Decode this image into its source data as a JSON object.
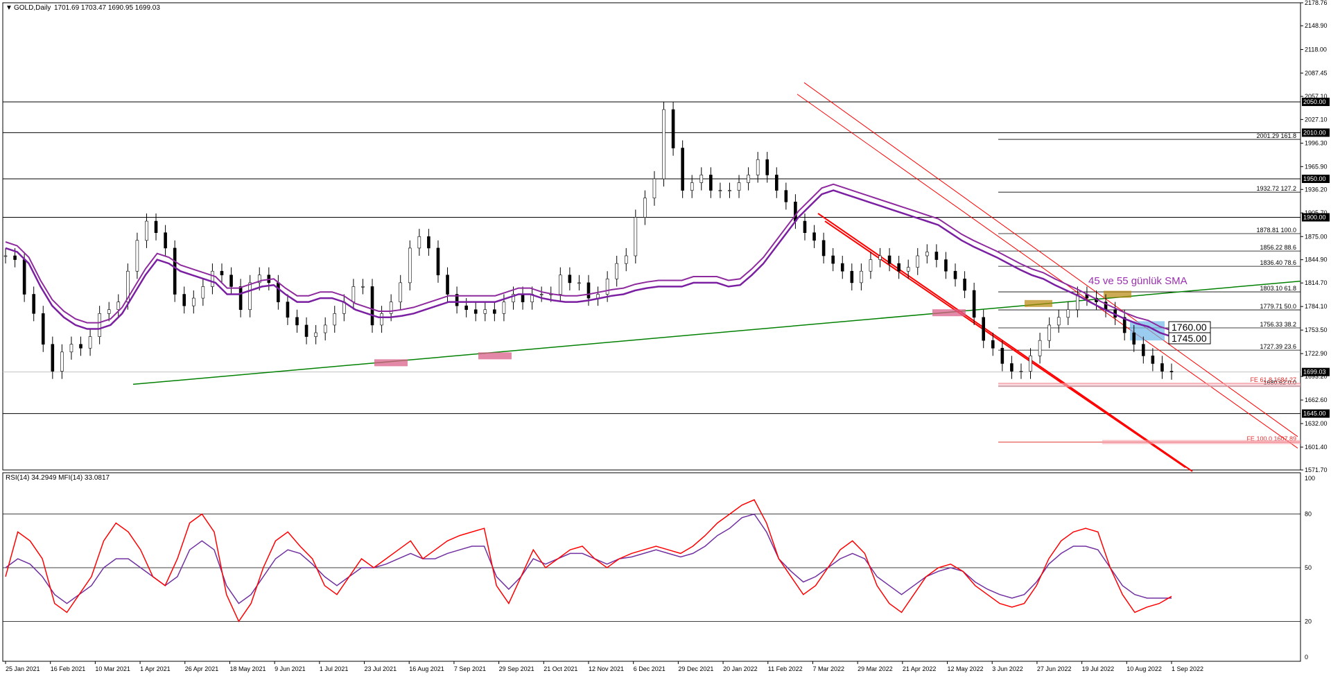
{
  "header": {
    "symbol": "GOLD,Daily",
    "ohlc": "1701.69 1703.47 1690.95 1699.03"
  },
  "rsi_header": "RSI(14) 34.2949  MFI(14) 33.0817",
  "annotation": "45 ve 55 günlük SMA",
  "level_boxes": [
    "1760.00",
    "1745.00"
  ],
  "colors": {
    "candles": "#000000",
    "sma45": "#7b1fa2",
    "sma55": "#8e2a9e",
    "trendline": "#008000",
    "channel": "#ff0000",
    "rsi": "#ff0000",
    "mfi": "#7030a0",
    "support_zone": "#d9608a",
    "resistance_zone": "#b8860b",
    "blue_zone": "#6fb7e8"
  },
  "chart_data": [
    {
      "type": "line",
      "series": [
        {
          "name": "GOLD,Daily",
          "values": [
            1850,
            1845,
            1800,
            1775,
            1735,
            1700,
            1725,
            1735,
            1730,
            1745,
            1775,
            1780,
            1790,
            1830,
            1870,
            1895,
            1880,
            1860,
            1800,
            1785,
            1795,
            1810,
            1830,
            1825,
            1810,
            1780,
            1815,
            1825,
            1815,
            1790,
            1770,
            1760,
            1745,
            1750,
            1760,
            1775,
            1790,
            1810,
            1810,
            1760,
            1775,
            1790,
            1815,
            1860,
            1875,
            1860,
            1825,
            1800,
            1785,
            1780,
            1775,
            1780,
            1775,
            1790,
            1800,
            1790,
            1800,
            1800,
            1800,
            1825,
            1815,
            1815,
            1795,
            1800,
            1820,
            1840,
            1850,
            1900,
            1925,
            1950,
            2040,
            1990,
            1935,
            1945,
            1955,
            1935,
            1935,
            1935,
            1945,
            1955,
            1975,
            1955,
            1935,
            1920,
            1895,
            1880,
            1870,
            1850,
            1840,
            1830,
            1815,
            1830,
            1845,
            1850,
            1840,
            1830,
            1835,
            1850,
            1855,
            1845,
            1830,
            1820,
            1805,
            1770,
            1740,
            1730,
            1710,
            1700,
            1700,
            1720,
            1740,
            1760,
            1770,
            1780,
            1800,
            1795,
            1790,
            1780,
            1770,
            1750,
            1735,
            1720,
            1710,
            1700,
            1699
          ]
        },
        {
          "name": "45 ve 55 günlük SMA",
          "values": [
            1860,
            1855,
            1840,
            1810,
            1785,
            1770,
            1760,
            1755,
            1755,
            1760,
            1775,
            1800,
            1825,
            1845,
            1840,
            1830,
            1825,
            1820,
            1815,
            1800,
            1800,
            1805,
            1810,
            1812,
            1800,
            1790,
            1790,
            1795,
            1795,
            1790,
            1780,
            1775,
            1770,
            1770,
            1772,
            1775,
            1780,
            1785,
            1790,
            1790,
            1790,
            1790,
            1790,
            1795,
            1800,
            1800,
            1795,
            1792,
            1790,
            1790,
            1792,
            1795,
            1798,
            1800,
            1805,
            1808,
            1810,
            1810,
            1810,
            1815,
            1815,
            1815,
            1810,
            1812,
            1825,
            1840,
            1860,
            1880,
            1900,
            1915,
            1930,
            1935,
            1930,
            1925,
            1920,
            1915,
            1910,
            1905,
            1900,
            1895,
            1890,
            1880,
            1870,
            1862,
            1855,
            1848,
            1840,
            1832,
            1825,
            1820,
            1812,
            1805,
            1798,
            1790,
            1782,
            1775,
            1768,
            1762,
            1758,
            1750,
            1745
          ]
        }
      ],
      "ylim": [
        1571.7,
        2178.76
      ]
    },
    {
      "type": "line",
      "series": [
        {
          "name": "RSI(14)",
          "values": [
            45,
            70,
            65,
            55,
            30,
            25,
            35,
            45,
            65,
            75,
            70,
            60,
            45,
            40,
            55,
            75,
            80,
            70,
            35,
            20,
            30,
            50,
            65,
            70,
            62,
            55,
            40,
            35,
            45,
            55,
            50,
            55,
            60,
            65,
            55,
            60,
            65,
            68,
            70,
            72,
            40,
            30,
            45,
            60,
            50,
            55,
            60,
            62,
            55,
            50,
            55,
            58,
            60,
            62,
            60,
            58,
            62,
            68,
            75,
            80,
            85,
            88,
            75,
            55,
            45,
            35,
            40,
            50,
            60,
            65,
            58,
            40,
            30,
            25,
            35,
            45,
            50,
            52,
            48,
            40,
            35,
            30,
            28,
            30,
            40,
            55,
            65,
            70,
            72,
            70,
            50,
            35,
            25,
            28,
            30,
            34
          ]
        },
        {
          "name": "MFI(14)",
          "values": [
            50,
            55,
            52,
            45,
            35,
            30,
            35,
            40,
            50,
            55,
            55,
            50,
            45,
            40,
            45,
            60,
            65,
            60,
            40,
            30,
            35,
            45,
            55,
            60,
            58,
            52,
            45,
            40,
            45,
            50,
            50,
            52,
            55,
            58,
            55,
            55,
            58,
            60,
            62,
            62,
            45,
            38,
            45,
            55,
            52,
            55,
            58,
            58,
            55,
            52,
            55,
            56,
            58,
            60,
            58,
            56,
            58,
            62,
            68,
            72,
            78,
            80,
            70,
            55,
            48,
            42,
            45,
            50,
            55,
            58,
            55,
            45,
            40,
            35,
            40,
            45,
            48,
            50,
            48,
            42,
            38,
            35,
            33,
            35,
            42,
            52,
            58,
            62,
            62,
            60,
            50,
            40,
            35,
            33,
            33,
            33
          ]
        }
      ],
      "ylim": [
        0,
        100
      ]
    }
  ],
  "price_axis": [
    "2178.76",
    "2148.90",
    "2118.00",
    "2087.45",
    "2057.10",
    "2027.10",
    "1996.30",
    "1965.90",
    "1936.20",
    "1905.70",
    "1875.00",
    "1844.90",
    "1814.70",
    "1784.10",
    "1753.50",
    "1722.90",
    "1693.20",
    "1662.60",
    "1632.00",
    "1601.40",
    "1571.70"
  ],
  "price_tags": [
    {
      "value": "2050.00",
      "price": 2050
    },
    {
      "value": "2010.00",
      "price": 2010
    },
    {
      "value": "1950.00",
      "price": 1950
    },
    {
      "value": "1900.00",
      "price": 1900
    },
    {
      "value": "1699.03",
      "price": 1699
    },
    {
      "value": "1645.00",
      "price": 1645
    }
  ],
  "fib_labels": [
    {
      "text": "2001.29 161.8",
      "price": 2001.29
    },
    {
      "text": "1932.72 127.2",
      "price": 1932.72
    },
    {
      "text": "1878.81 100.0",
      "price": 1878.81
    },
    {
      "text": "1856.22 88.6",
      "price": 1856.22
    },
    {
      "text": "1836.40 78.6",
      "price": 1836.4
    },
    {
      "text": "1803.10 61.8",
      "price": 1803.1
    },
    {
      "text": "1779.71 50.0",
      "price": 1779.71
    },
    {
      "text": "1756.33 38.2",
      "price": 1756.33
    },
    {
      "text": "1727.39 23.6",
      "price": 1727.39
    },
    {
      "text": "1680.62 0.0",
      "price": 1680.62
    }
  ],
  "fe_labels": [
    {
      "text": "FE 61.8 1684.27",
      "price": 1684.27
    },
    {
      "text": "FE 100.0 1607.89",
      "price": 1607.89
    }
  ],
  "rsi_axis": [
    "100",
    "80",
    "50",
    "20",
    "0"
  ],
  "date_axis": [
    "25 Jan 2021",
    "16 Feb 2021",
    "10 Mar 2021",
    "1 Apr 2021",
    "26 Apr 2021",
    "18 May 2021",
    "9 Jun 2021",
    "1 Jul 2021",
    "23 Jul 2021",
    "16 Aug 2021",
    "7 Sep 2021",
    "29 Sep 2021",
    "21 Oct 2021",
    "12 Nov 2021",
    "6 Dec 2021",
    "29 Dec 2021",
    "20 Jan 2022",
    "11 Feb 2022",
    "7 Mar 2022",
    "29 Mar 2022",
    "21 Apr 2022",
    "12 May 2022",
    "3 Jun 2022",
    "27 Jun 2022",
    "19 Jul 2022",
    "10 Aug 2022",
    "1 Sep 2022"
  ]
}
